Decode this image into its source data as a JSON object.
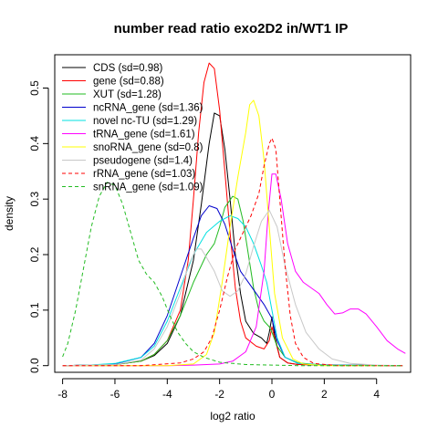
{
  "chart_data": {
    "type": "line",
    "title": "number read ratio exo2D2 in/WT1 IP",
    "xlabel": "log2 ratio",
    "ylabel": "density",
    "xlim": [
      -8.3,
      5.3
    ],
    "ylim": [
      -0.012,
      0.56
    ],
    "x_ticks": [
      -8,
      -6,
      -4,
      -2,
      0,
      2,
      4
    ],
    "y_ticks": [
      0.0,
      0.1,
      0.2,
      0.3,
      0.4,
      0.5
    ],
    "x_tick_labels": [
      "-8",
      "-6",
      "-4",
      "-2",
      "0",
      "2",
      "4"
    ],
    "y_tick_labels": [
      "0.0",
      "0.1",
      "0.2",
      "0.3",
      "0.4",
      "0.5"
    ],
    "legend_position": "top-left",
    "grid": false,
    "series": [
      {
        "name": "CDS (sd=0.98)",
        "color": "#000000",
        "dash": "solid",
        "points": [
          [
            -8,
            0
          ],
          [
            -6,
            0.002
          ],
          [
            -5,
            0.008
          ],
          [
            -4.5,
            0.018
          ],
          [
            -4,
            0.04
          ],
          [
            -3.5,
            0.09
          ],
          [
            -3,
            0.19
          ],
          [
            -2.7,
            0.29
          ],
          [
            -2.4,
            0.4
          ],
          [
            -2.2,
            0.455
          ],
          [
            -2,
            0.45
          ],
          [
            -1.8,
            0.39
          ],
          [
            -1.6,
            0.3
          ],
          [
            -1.4,
            0.2
          ],
          [
            -1.2,
            0.13
          ],
          [
            -1,
            0.08
          ],
          [
            -0.7,
            0.058
          ],
          [
            -0.4,
            0.05
          ],
          [
            -0.2,
            0.04
          ],
          [
            -0.1,
            0.06
          ],
          [
            0,
            0.088
          ],
          [
            0.1,
            0.055
          ],
          [
            0.3,
            0.015
          ],
          [
            0.6,
            0.005
          ],
          [
            1,
            0.002
          ],
          [
            2,
            0.001
          ],
          [
            5,
            0
          ]
        ]
      },
      {
        "name": "gene (sd=0.88)",
        "color": "#ff0000",
        "dash": "solid",
        "points": [
          [
            -8,
            0
          ],
          [
            -6,
            0.002
          ],
          [
            -5,
            0.008
          ],
          [
            -4.5,
            0.02
          ],
          [
            -4,
            0.045
          ],
          [
            -3.5,
            0.1
          ],
          [
            -3.2,
            0.19
          ],
          [
            -3,
            0.3
          ],
          [
            -2.8,
            0.42
          ],
          [
            -2.6,
            0.51
          ],
          [
            -2.4,
            0.545
          ],
          [
            -2.2,
            0.535
          ],
          [
            -2,
            0.46
          ],
          [
            -1.8,
            0.35
          ],
          [
            -1.6,
            0.24
          ],
          [
            -1.4,
            0.14
          ],
          [
            -1.2,
            0.08
          ],
          [
            -1,
            0.05
          ],
          [
            -0.6,
            0.035
          ],
          [
            -0.3,
            0.03
          ],
          [
            -0.1,
            0.045
          ],
          [
            0,
            0.07
          ],
          [
            0.1,
            0.05
          ],
          [
            0.3,
            0.015
          ],
          [
            0.6,
            0.005
          ],
          [
            1,
            0.002
          ],
          [
            5,
            0
          ]
        ]
      },
      {
        "name": "XUT (sd=1.28)",
        "color": "#22bb22",
        "dash": "solid",
        "points": [
          [
            -8,
            0
          ],
          [
            -6,
            0.002
          ],
          [
            -5,
            0.008
          ],
          [
            -4.5,
            0.02
          ],
          [
            -4,
            0.045
          ],
          [
            -3.5,
            0.09
          ],
          [
            -3,
            0.15
          ],
          [
            -2.5,
            0.2
          ],
          [
            -2.2,
            0.22
          ],
          [
            -2,
            0.25
          ],
          [
            -1.8,
            0.285
          ],
          [
            -1.5,
            0.305
          ],
          [
            -1.3,
            0.3
          ],
          [
            -1.1,
            0.26
          ],
          [
            -0.9,
            0.2
          ],
          [
            -0.7,
            0.14
          ],
          [
            -0.5,
            0.1
          ],
          [
            -0.3,
            0.08
          ],
          [
            -0.1,
            0.07
          ],
          [
            0,
            0.06
          ],
          [
            0.2,
            0.035
          ],
          [
            0.5,
            0.015
          ],
          [
            1,
            0.005
          ],
          [
            2,
            0.001
          ],
          [
            5,
            0
          ]
        ]
      },
      {
        "name": "ncRNA_gene (sd=1.36)",
        "color": "#0000cc",
        "dash": "solid",
        "points": [
          [
            -8,
            0
          ],
          [
            -7,
            0.001
          ],
          [
            -6,
            0.003
          ],
          [
            -5,
            0.015
          ],
          [
            -4.5,
            0.04
          ],
          [
            -4,
            0.09
          ],
          [
            -3.5,
            0.16
          ],
          [
            -3,
            0.23
          ],
          [
            -2.7,
            0.27
          ],
          [
            -2.4,
            0.288
          ],
          [
            -2.1,
            0.283
          ],
          [
            -1.8,
            0.255
          ],
          [
            -1.5,
            0.21
          ],
          [
            -1.2,
            0.17
          ],
          [
            -0.9,
            0.15
          ],
          [
            -0.6,
            0.13
          ],
          [
            -0.3,
            0.11
          ],
          [
            0,
            0.085
          ],
          [
            0.2,
            0.045
          ],
          [
            0.5,
            0.015
          ],
          [
            1,
            0.004
          ],
          [
            2,
            0.001
          ],
          [
            5,
            0
          ]
        ]
      },
      {
        "name": "novel nc-TU (sd=1.29)",
        "color": "#00e0e0",
        "dash": "solid",
        "points": [
          [
            -8,
            0
          ],
          [
            -7,
            0.001
          ],
          [
            -6,
            0.004
          ],
          [
            -5,
            0.015
          ],
          [
            -4.5,
            0.035
          ],
          [
            -4,
            0.08
          ],
          [
            -3.5,
            0.14
          ],
          [
            -3,
            0.2
          ],
          [
            -2.5,
            0.24
          ],
          [
            -2,
            0.26
          ],
          [
            -1.6,
            0.27
          ],
          [
            -1.3,
            0.265
          ],
          [
            -1,
            0.25
          ],
          [
            -0.7,
            0.22
          ],
          [
            -0.4,
            0.18
          ],
          [
            -0.2,
            0.15
          ],
          [
            0,
            0.1
          ],
          [
            0.2,
            0.05
          ],
          [
            0.5,
            0.015
          ],
          [
            1,
            0.004
          ],
          [
            2,
            0.001
          ],
          [
            5,
            0
          ]
        ]
      },
      {
        "name": "tRNA_gene (sd=1.61)",
        "color": "#ff00ff",
        "dash": "solid",
        "points": [
          [
            -8,
            0
          ],
          [
            -4,
            0
          ],
          [
            -3,
            0.001
          ],
          [
            -2,
            0.003
          ],
          [
            -1.5,
            0.008
          ],
          [
            -1,
            0.025
          ],
          [
            -0.6,
            0.07
          ],
          [
            -0.3,
            0.17
          ],
          [
            -0.15,
            0.27
          ],
          [
            0,
            0.345
          ],
          [
            0.15,
            0.345
          ],
          [
            0.35,
            0.3
          ],
          [
            0.6,
            0.22
          ],
          [
            0.9,
            0.17
          ],
          [
            1.2,
            0.15
          ],
          [
            1.5,
            0.14
          ],
          [
            1.8,
            0.13
          ],
          [
            2.1,
            0.11
          ],
          [
            2.4,
            0.093
          ],
          [
            2.7,
            0.095
          ],
          [
            3,
            0.102
          ],
          [
            3.3,
            0.102
          ],
          [
            3.6,
            0.093
          ],
          [
            4,
            0.07
          ],
          [
            4.4,
            0.045
          ],
          [
            4.8,
            0.03
          ],
          [
            5.1,
            0.022
          ]
        ]
      },
      {
        "name": "snoRNA_gene (sd=0.8)",
        "color": "#ffff00",
        "dash": "solid",
        "points": [
          [
            -8,
            0
          ],
          [
            -4,
            0
          ],
          [
            -3,
            0.003
          ],
          [
            -2.5,
            0.02
          ],
          [
            -2.2,
            0.06
          ],
          [
            -1.9,
            0.15
          ],
          [
            -1.6,
            0.25
          ],
          [
            -1.3,
            0.34
          ],
          [
            -1,
            0.42
          ],
          [
            -0.85,
            0.47
          ],
          [
            -0.7,
            0.478
          ],
          [
            -0.5,
            0.45
          ],
          [
            -0.3,
            0.37
          ],
          [
            -0.1,
            0.25
          ],
          [
            0.1,
            0.13
          ],
          [
            0.4,
            0.05
          ],
          [
            0.8,
            0.012
          ],
          [
            1.2,
            0.003
          ],
          [
            2,
            0
          ],
          [
            5,
            0
          ]
        ]
      },
      {
        "name": "pseudogene (sd=1.4)",
        "color": "#c8c8c8",
        "dash": "solid",
        "points": [
          [
            -8,
            0
          ],
          [
            -6,
            0.002
          ],
          [
            -5,
            0.01
          ],
          [
            -4.5,
            0.03
          ],
          [
            -4,
            0.07
          ],
          [
            -3.5,
            0.13
          ],
          [
            -3.2,
            0.18
          ],
          [
            -2.9,
            0.21
          ],
          [
            -2.7,
            0.21
          ],
          [
            -2.5,
            0.195
          ],
          [
            -2.2,
            0.17
          ],
          [
            -1.9,
            0.135
          ],
          [
            -1.6,
            0.125
          ],
          [
            -1.3,
            0.135
          ],
          [
            -1,
            0.165
          ],
          [
            -0.7,
            0.215
          ],
          [
            -0.4,
            0.26
          ],
          [
            -0.1,
            0.28
          ],
          [
            0.2,
            0.25
          ],
          [
            0.5,
            0.18
          ],
          [
            0.9,
            0.11
          ],
          [
            1.3,
            0.06
          ],
          [
            1.8,
            0.03
          ],
          [
            2.3,
            0.012
          ],
          [
            3,
            0.004
          ],
          [
            4,
            0.001
          ],
          [
            5,
            0
          ]
        ]
      },
      {
        "name": "rRNA_gene (sd=1.03)",
        "color": "#ff0000",
        "dash": "dashed",
        "points": [
          [
            -8,
            0
          ],
          [
            -5,
            0
          ],
          [
            -3.5,
            0.005
          ],
          [
            -3,
            0.012
          ],
          [
            -2.6,
            0.025
          ],
          [
            -2.3,
            0.05
          ],
          [
            -2,
            0.1
          ],
          [
            -1.7,
            0.16
          ],
          [
            -1.4,
            0.21
          ],
          [
            -1.1,
            0.24
          ],
          [
            -0.8,
            0.27
          ],
          [
            -0.5,
            0.31
          ],
          [
            -0.3,
            0.36
          ],
          [
            -0.1,
            0.4
          ],
          [
            0,
            0.41
          ],
          [
            0.15,
            0.39
          ],
          [
            0.3,
            0.3
          ],
          [
            0.5,
            0.18
          ],
          [
            0.7,
            0.09
          ],
          [
            0.9,
            0.04
          ],
          [
            1.2,
            0.015
          ],
          [
            1.6,
            0.004
          ],
          [
            2.5,
            0
          ],
          [
            5,
            0
          ]
        ]
      },
      {
        "name": "snRNA_gene (sd=1.09)",
        "color": "#22bb22",
        "dash": "dashed",
        "points": [
          [
            -8,
            0.016
          ],
          [
            -7.8,
            0.04
          ],
          [
            -7.5,
            0.1
          ],
          [
            -7.2,
            0.175
          ],
          [
            -6.9,
            0.25
          ],
          [
            -6.6,
            0.305
          ],
          [
            -6.3,
            0.33
          ],
          [
            -6,
            0.325
          ],
          [
            -5.7,
            0.29
          ],
          [
            -5.4,
            0.24
          ],
          [
            -5.1,
            0.19
          ],
          [
            -4.8,
            0.165
          ],
          [
            -4.5,
            0.15
          ],
          [
            -4.2,
            0.125
          ],
          [
            -3.9,
            0.09
          ],
          [
            -3.6,
            0.06
          ],
          [
            -3.3,
            0.04
          ],
          [
            -3,
            0.025
          ],
          [
            -2.6,
            0.015
          ],
          [
            -2,
            0.006
          ],
          [
            -1,
            0.002
          ],
          [
            0,
            0.001
          ],
          [
            1,
            0
          ],
          [
            5,
            0
          ]
        ]
      }
    ]
  }
}
